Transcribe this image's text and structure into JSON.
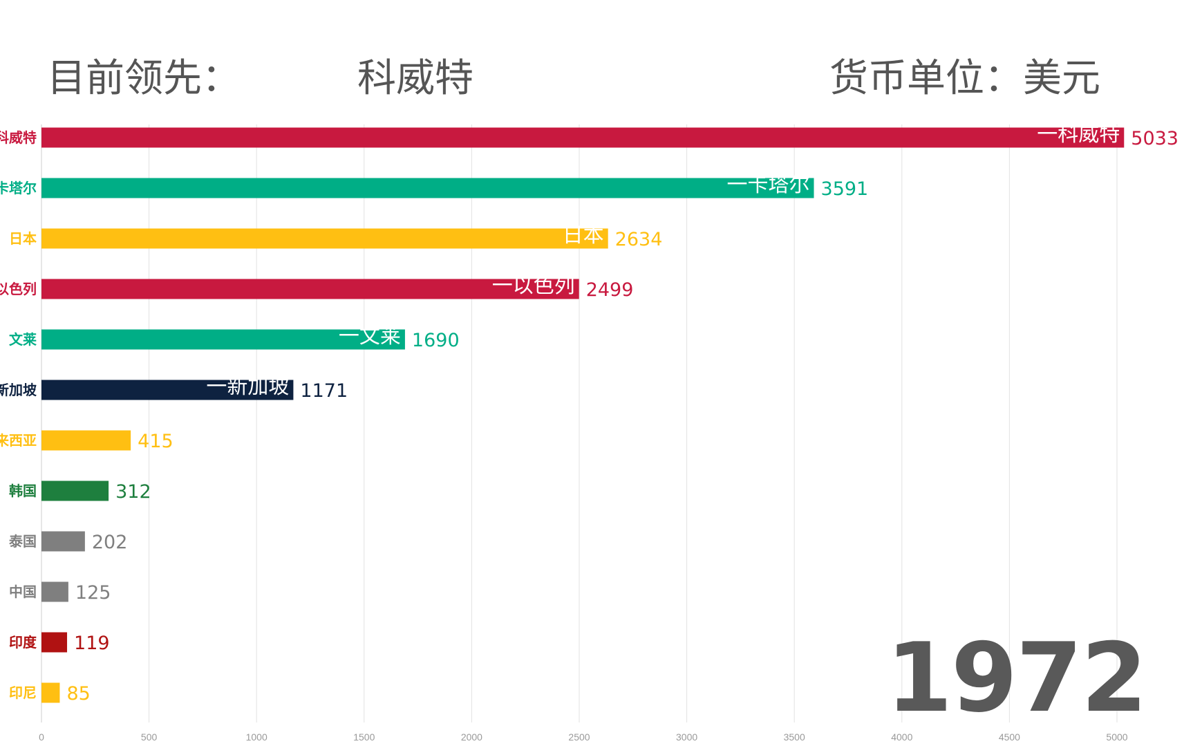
{
  "header": {
    "leader_label": "目前领先：",
    "leader_value": "科威特",
    "unit_label": "货币单位：美元"
  },
  "year": "1972",
  "chart_data": {
    "type": "bar",
    "orientation": "horizontal",
    "xlim": [
      0,
      5000
    ],
    "x_ticks": [
      0,
      500,
      1000,
      1500,
      2000,
      2500,
      3000,
      3500,
      4000,
      4500,
      5000
    ],
    "grid": true,
    "categories": [
      "科威特",
      "卡塔尔",
      "日本",
      "以色列",
      "文莱",
      "新加坡",
      "马来西亚",
      "韩国",
      "泰国",
      "中国",
      "印度",
      "印尼"
    ],
    "values": [
      5033,
      3591,
      2634,
      2499,
      1690,
      1171,
      415,
      312,
      202,
      125,
      119,
      85
    ],
    "colors": [
      "#C8193F",
      "#00AE86",
      "#FFBF12",
      "#C8193F",
      "#00AE86",
      "#0E2240",
      "#FFBF12",
      "#1E7F3E",
      "#7F7F7F",
      "#7F7F7F",
      "#B01212",
      "#FFBF12"
    ],
    "bar_inner_labels": [
      "一科威特",
      "一卡塔尔",
      "日本",
      "一以色列",
      "一文莱",
      "一新加坡",
      "",
      "",
      "",
      "",
      "",
      ""
    ]
  }
}
